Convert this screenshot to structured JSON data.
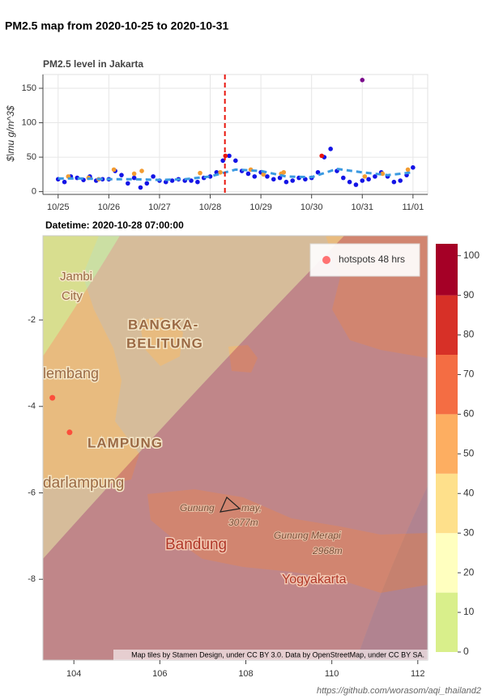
{
  "title": "PM2.5 map from 2020-10-25 to 2020-10-31",
  "chart_data": [
    {
      "type": "scatter",
      "title": "PM2.5 level in Jakarta",
      "y_label": "$\\mu g/m^3$",
      "xlim": [
        -0.3,
        7.29
      ],
      "ylim": [
        -4,
        170
      ],
      "xticks": [
        {
          "value": 0,
          "label": "10/25"
        },
        {
          "value": 1,
          "label": "10/26"
        },
        {
          "value": 2,
          "label": "10/27"
        },
        {
          "value": 3,
          "label": "10/28"
        },
        {
          "value": 4,
          "label": "10/29"
        },
        {
          "value": 5,
          "label": "10/30"
        },
        {
          "value": 6,
          "label": "10/31"
        },
        {
          "value": 7,
          "label": "11/01"
        }
      ],
      "yticks": [
        0,
        50,
        100,
        150
      ],
      "grid": true,
      "vline": {
        "x": 3.29,
        "color": "#e8160c"
      },
      "series": [
        {
          "color": "#1414e6",
          "mode": "markers",
          "x": [
            0,
            0.125,
            0.25,
            0.375,
            0.5,
            0.625,
            0.75,
            0.875,
            1,
            1.125,
            1.25,
            1.375,
            1.5,
            1.625,
            1.75,
            1.875,
            2,
            2.125,
            2.25,
            2.375,
            2.5,
            2.625,
            2.75,
            2.875,
            3,
            3.125,
            3.25,
            3.375,
            3.5,
            3.625,
            3.75,
            3.875,
            4,
            4.125,
            4.25,
            4.375,
            4.5,
            4.625,
            4.75,
            4.875,
            5,
            5.125,
            5.25,
            5.375,
            5.5,
            5.625,
            5.75,
            5.875,
            6,
            6.125,
            6.25,
            6.375,
            6.5,
            6.625,
            6.75,
            6.875,
            7
          ],
          "values": [
            18,
            14,
            22,
            20,
            17,
            22,
            16,
            18,
            18,
            30,
            24,
            12,
            20,
            6,
            12,
            22,
            16,
            14,
            16,
            18,
            16,
            16,
            14,
            20,
            22,
            28,
            45,
            52,
            45,
            30,
            26,
            22,
            28,
            22,
            18,
            20,
            14,
            16,
            20,
            18,
            20,
            28,
            50,
            62,
            30,
            20,
            14,
            10,
            16,
            18,
            22,
            28,
            22,
            14,
            16,
            24,
            35
          ]
        },
        {
          "color": "#f39c32",
          "mode": "markers",
          "x": [
            0.2,
            0.6,
            0.8,
            1.1,
            1.5,
            1.65,
            2.8,
            3.2,
            3.8,
            4.05,
            4.4,
            4.45,
            6.05,
            6.4,
            6.9
          ],
          "values": [
            22,
            20,
            18,
            32,
            26,
            30,
            27,
            28,
            32,
            25,
            26,
            28,
            22,
            26,
            32
          ]
        },
        {
          "color": "#e8160c",
          "mode": "markers",
          "x": [
            3.3,
            5.2
          ],
          "values": [
            52,
            52
          ]
        },
        {
          "color": "#7b0a8c",
          "mode": "markers",
          "x": [
            6.0
          ],
          "values": [
            162
          ]
        },
        {
          "color": "#3b9ae1",
          "mode": "dashed",
          "x": [
            0,
            0.5,
            1,
            1.5,
            2,
            2.5,
            3,
            3.5,
            4,
            4.5,
            5,
            5.5,
            6,
            6.5,
            7
          ],
          "values": [
            19,
            19,
            18,
            18,
            17,
            18,
            22,
            32,
            30,
            22,
            21,
            33,
            28,
            24,
            28
          ]
        }
      ]
    },
    {
      "type": "map",
      "subtitle": "Datetime: 2020-10-28 07:00:00",
      "xlim": [
        103.28,
        112.23
      ],
      "ylim": [
        -9.87,
        -0.05
      ],
      "xticks": [
        104,
        106,
        108,
        110,
        112
      ],
      "yticks": [
        -2,
        -4,
        -6,
        -8
      ],
      "legend": {
        "label": "hotspots 48 hrs",
        "corner": "upper right",
        "color": "#ff5a5a"
      },
      "hotspots": {
        "color": "#ff3b2f",
        "x": [
          103.5,
          103.9
        ],
        "values": [
          -3.8,
          -4.6
        ]
      },
      "colorbar": {
        "lim": [
          0,
          103
        ],
        "ticks": [
          0,
          10,
          20,
          30,
          40,
          50,
          60,
          70,
          80,
          90,
          100
        ],
        "bins": [
          0,
          15,
          30,
          45,
          60,
          75,
          90,
          103
        ],
        "colors": [
          "#d9ef8b",
          "#ffffbf",
          "#fee08b",
          "#fdae61",
          "#f46d43",
          "#d73027",
          "#a50026"
        ]
      },
      "places": [
        "Jambi",
        "City",
        "BANGKA-",
        "BELITUNG",
        "lembang",
        "LAMPUNG",
        "darlampung",
        "Gunung",
        "may,",
        "3077m",
        "Bandung",
        "Gunung Merapi",
        "2968m",
        "Yogyakarta"
      ],
      "attribution": "Map tiles by Stamen Design, under CC BY 3.0. Data by OpenStreetMap, under CC BY SA."
    }
  ],
  "footer": "https://github.com/worasom/aqi_thailand2"
}
